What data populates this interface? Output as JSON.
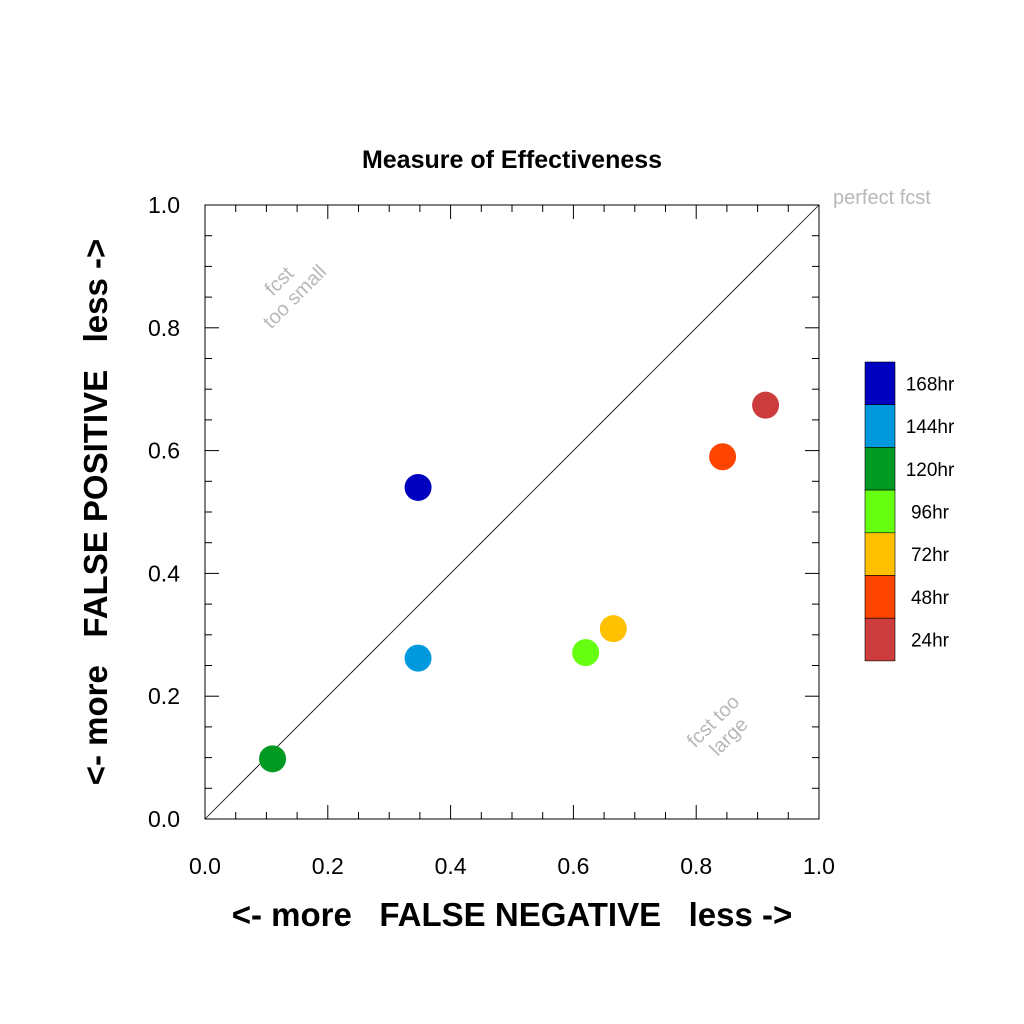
{
  "chart_data": {
    "type": "scatter",
    "title": "Measure of Effectiveness",
    "xlabel": "<- more   FALSE NEGATIVE   less ->",
    "ylabel": "<- more   FALSE POSITIVE   less ->",
    "xlim": [
      0.0,
      1.0
    ],
    "ylim": [
      0.0,
      1.0
    ],
    "xticks": [
      "0.0",
      "0.2",
      "0.4",
      "0.6",
      "0.8",
      "1.0"
    ],
    "yticks": [
      "0.0",
      "0.2",
      "0.4",
      "0.6",
      "0.8",
      "1.0"
    ],
    "grid": false,
    "diagonal_line": true,
    "legend_position": "right",
    "annotations": {
      "perfect": "perfect fcst",
      "small_line1": "fcst",
      "small_line2": "too small",
      "large_line1": "fcst too",
      "large_line2": "large"
    },
    "series": [
      {
        "name": "168hr",
        "color": "#0000c0",
        "x": 0.347,
        "y": 0.54
      },
      {
        "name": "144hr",
        "color": "#0099dd",
        "x": 0.347,
        "y": 0.262
      },
      {
        "name": "120hr",
        "color": "#009922",
        "x": 0.11,
        "y": 0.098
      },
      {
        "name": "96hr",
        "color": "#66ff11",
        "x": 0.62,
        "y": 0.271
      },
      {
        "name": "72hr",
        "color": "#ffc000",
        "x": 0.665,
        "y": 0.31
      },
      {
        "name": "48hr",
        "color": "#ff4400",
        "x": 0.843,
        "y": 0.59
      },
      {
        "name": "24hr",
        "color": "#cc3c3c",
        "x": 0.913,
        "y": 0.674
      }
    ]
  }
}
